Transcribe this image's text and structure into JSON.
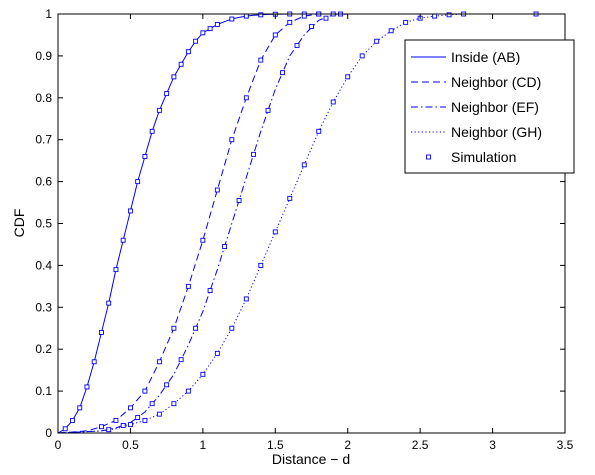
{
  "chart_data": {
    "type": "line",
    "title": "",
    "xlabel": "Distance − d",
    "ylabel": "CDF",
    "xlim": [
      0,
      3.5
    ],
    "ylim": [
      0,
      1
    ],
    "grid": false,
    "legend_position": "top-right",
    "x_ticks": [
      {
        "value": 0,
        "label": "0"
      },
      {
        "value": 0.5,
        "label": "0.5"
      },
      {
        "value": 1,
        "label": "1"
      },
      {
        "value": 1.5,
        "label": "1.5"
      },
      {
        "value": 2,
        "label": "2"
      },
      {
        "value": 2.5,
        "label": "2.5"
      },
      {
        "value": 3,
        "label": "3"
      },
      {
        "value": 3.5,
        "label": "3.5"
      }
    ],
    "y_ticks": [
      {
        "value": 0,
        "label": "0"
      },
      {
        "value": 0.1,
        "label": "0.1"
      },
      {
        "value": 0.2,
        "label": "0.2"
      },
      {
        "value": 0.3,
        "label": "0.3"
      },
      {
        "value": 0.4,
        "label": "0.4"
      },
      {
        "value": 0.5,
        "label": "0.5"
      },
      {
        "value": 0.6,
        "label": "0.6"
      },
      {
        "value": 0.7,
        "label": "0.7"
      },
      {
        "value": 0.8,
        "label": "0.8"
      },
      {
        "value": 0.9,
        "label": "0.9"
      },
      {
        "value": 1,
        "label": "1"
      }
    ],
    "series": [
      {
        "name": "Inside (AB)",
        "style": "solid",
        "color": "#0000ff",
        "x": [
          0,
          0.05,
          0.1,
          0.15,
          0.2,
          0.25,
          0.3,
          0.35,
          0.4,
          0.45,
          0.5,
          0.55,
          0.6,
          0.65,
          0.7,
          0.75,
          0.8,
          0.85,
          0.9,
          0.95,
          1.0,
          1.05,
          1.1,
          1.15,
          1.2,
          1.25,
          1.3,
          1.35,
          1.4,
          1.45,
          1.5,
          1.55,
          1.6,
          1.65,
          1.7,
          1.75,
          1.8,
          1.85,
          3.3
        ],
        "y": [
          0,
          0.01,
          0.03,
          0.06,
          0.11,
          0.17,
          0.24,
          0.31,
          0.39,
          0.46,
          0.53,
          0.6,
          0.66,
          0.72,
          0.77,
          0.81,
          0.85,
          0.88,
          0.91,
          0.935,
          0.955,
          0.965,
          0.975,
          0.982,
          0.988,
          0.992,
          0.995,
          0.997,
          0.998,
          0.999,
          0.9995,
          0.9998,
          1.0,
          1.0,
          1.0,
          1.0,
          1.0,
          1.0,
          1.0
        ]
      },
      {
        "name": "Neighbor (CD)",
        "style": "dashed",
        "color": "#0000ff",
        "x": [
          0,
          0.2,
          0.3,
          0.4,
          0.5,
          0.6,
          0.7,
          0.8,
          0.9,
          1.0,
          1.1,
          1.2,
          1.3,
          1.4,
          1.5,
          1.6,
          1.7,
          1.8,
          1.9,
          3.3
        ],
        "y": [
          0,
          0.005,
          0.015,
          0.03,
          0.06,
          0.1,
          0.17,
          0.25,
          0.35,
          0.46,
          0.58,
          0.7,
          0.8,
          0.89,
          0.95,
          0.98,
          0.995,
          1.0,
          1.0,
          1.0
        ]
      },
      {
        "name": "Neighbor (EF)",
        "style": "dashdot",
        "color": "#0000ff",
        "x": [
          0,
          0.3,
          0.4,
          0.5,
          0.6,
          0.7,
          0.8,
          0.9,
          1.0,
          1.1,
          1.2,
          1.3,
          1.4,
          1.5,
          1.6,
          1.7,
          1.8,
          1.9,
          2.0,
          3.3
        ],
        "y": [
          0,
          0.005,
          0.012,
          0.025,
          0.05,
          0.09,
          0.14,
          0.21,
          0.29,
          0.39,
          0.5,
          0.61,
          0.72,
          0.82,
          0.9,
          0.95,
          0.985,
          0.998,
          1.0,
          1.0
        ]
      },
      {
        "name": "Neighbor (GH)",
        "style": "dotted",
        "color": "#0000ff",
        "x": [
          0,
          0.3,
          0.4,
          0.5,
          0.6,
          0.7,
          0.8,
          0.9,
          1.0,
          1.1,
          1.2,
          1.3,
          1.4,
          1.5,
          1.6,
          1.7,
          1.8,
          1.9,
          2.0,
          2.1,
          2.2,
          2.3,
          2.4,
          2.5,
          2.6,
          2.7,
          2.8,
          2.9,
          3.0,
          3.3
        ],
        "y": [
          0,
          0.005,
          0.01,
          0.02,
          0.03,
          0.045,
          0.07,
          0.1,
          0.14,
          0.19,
          0.25,
          0.32,
          0.4,
          0.48,
          0.56,
          0.64,
          0.72,
          0.79,
          0.85,
          0.9,
          0.935,
          0.96,
          0.98,
          0.99,
          0.995,
          0.998,
          1.0,
          1.0,
          1.0,
          1.0
        ]
      }
    ],
    "simulation": {
      "name": "Simulation",
      "marker": "square",
      "color": "#0000ff",
      "points": [
        [
          0.05,
          0.01
        ],
        [
          0.1,
          0.03
        ],
        [
          0.15,
          0.06
        ],
        [
          0.2,
          0.11
        ],
        [
          0.25,
          0.17
        ],
        [
          0.3,
          0.24
        ],
        [
          0.35,
          0.31
        ],
        [
          0.4,
          0.39
        ],
        [
          0.45,
          0.46
        ],
        [
          0.5,
          0.53
        ],
        [
          0.55,
          0.6
        ],
        [
          0.6,
          0.66
        ],
        [
          0.65,
          0.72
        ],
        [
          0.7,
          0.77
        ],
        [
          0.75,
          0.81
        ],
        [
          0.8,
          0.85
        ],
        [
          0.85,
          0.88
        ],
        [
          0.9,
          0.91
        ],
        [
          0.95,
          0.935
        ],
        [
          1.0,
          0.955
        ],
        [
          1.05,
          0.965
        ],
        [
          1.1,
          0.975
        ],
        [
          1.2,
          0.988
        ],
        [
          1.3,
          0.995
        ],
        [
          1.4,
          0.998
        ],
        [
          1.5,
          0.9995
        ],
        [
          1.6,
          1.0
        ],
        [
          1.7,
          1.0
        ],
        [
          1.8,
          1.0
        ],
        [
          0.3,
          0.015
        ],
        [
          0.4,
          0.03
        ],
        [
          0.5,
          0.06
        ],
        [
          0.6,
          0.1
        ],
        [
          0.7,
          0.17
        ],
        [
          0.8,
          0.25
        ],
        [
          0.9,
          0.35
        ],
        [
          1.0,
          0.46
        ],
        [
          1.1,
          0.58
        ],
        [
          1.2,
          0.7
        ],
        [
          1.3,
          0.8
        ],
        [
          1.4,
          0.89
        ],
        [
          1.5,
          0.95
        ],
        [
          1.6,
          0.98
        ],
        [
          1.7,
          0.995
        ],
        [
          1.8,
          1.0
        ],
        [
          1.9,
          1.0
        ],
        [
          0.35,
          0.008
        ],
        [
          0.45,
          0.018
        ],
        [
          0.55,
          0.037
        ],
        [
          0.65,
          0.07
        ],
        [
          0.75,
          0.115
        ],
        [
          0.85,
          0.175
        ],
        [
          0.95,
          0.25
        ],
        [
          1.05,
          0.34
        ],
        [
          1.15,
          0.445
        ],
        [
          1.25,
          0.555
        ],
        [
          1.35,
          0.665
        ],
        [
          1.45,
          0.77
        ],
        [
          1.55,
          0.86
        ],
        [
          1.65,
          0.925
        ],
        [
          1.75,
          0.97
        ],
        [
          1.85,
          0.99
        ],
        [
          1.95,
          1.0
        ],
        [
          0.5,
          0.02
        ],
        [
          0.6,
          0.03
        ],
        [
          0.7,
          0.045
        ],
        [
          0.8,
          0.07
        ],
        [
          0.9,
          0.1
        ],
        [
          1.0,
          0.14
        ],
        [
          1.1,
          0.19
        ],
        [
          1.2,
          0.25
        ],
        [
          1.3,
          0.32
        ],
        [
          1.4,
          0.4
        ],
        [
          1.5,
          0.48
        ],
        [
          1.6,
          0.56
        ],
        [
          1.7,
          0.64
        ],
        [
          1.8,
          0.72
        ],
        [
          1.9,
          0.79
        ],
        [
          2.0,
          0.85
        ],
        [
          2.1,
          0.9
        ],
        [
          2.2,
          0.935
        ],
        [
          2.3,
          0.96
        ],
        [
          2.4,
          0.98
        ],
        [
          2.5,
          0.99
        ],
        [
          2.6,
          0.995
        ],
        [
          2.7,
          0.998
        ],
        [
          2.8,
          1.0
        ],
        [
          3.3,
          1.0
        ]
      ]
    }
  }
}
